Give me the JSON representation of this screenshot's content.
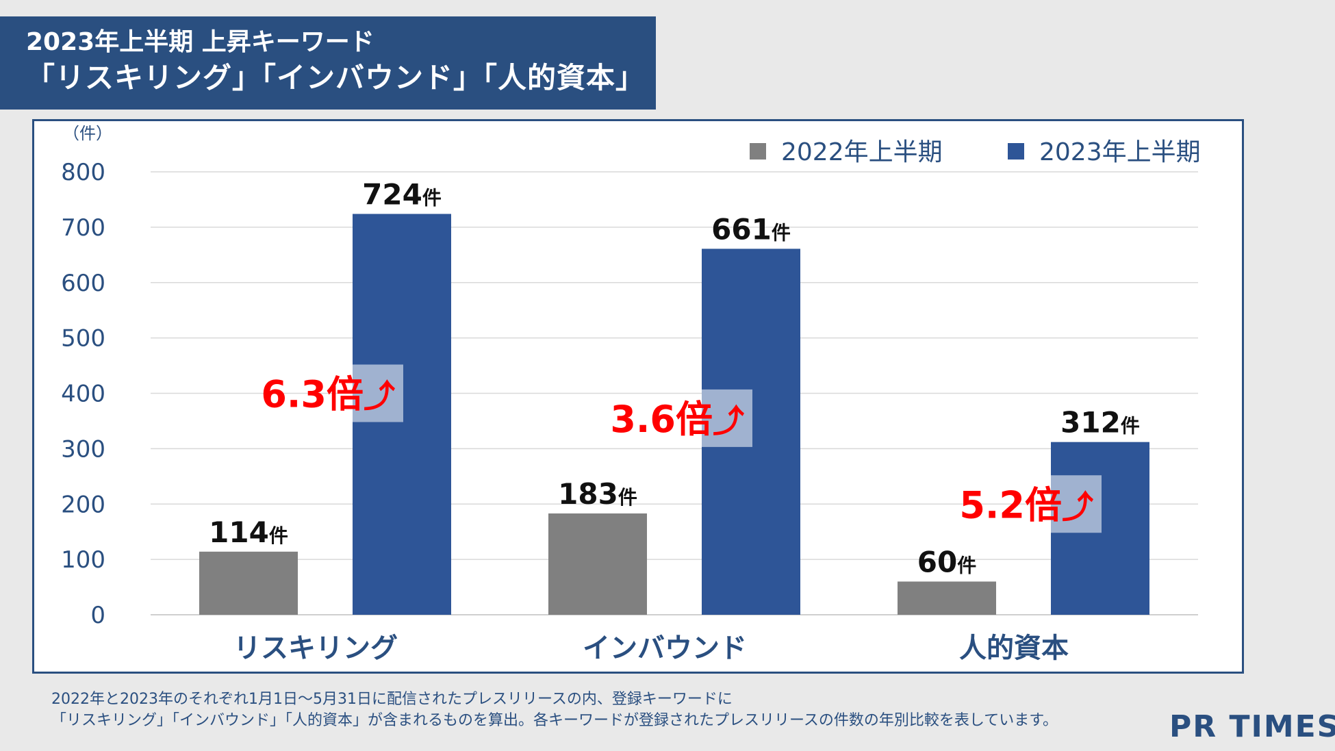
{
  "header": {
    "title_line1": "2023年上半期 上昇キーワード",
    "title_line2": "「リスキリング」「インバウンド」「人的資本」"
  },
  "chart_data": {
    "type": "bar",
    "unit_label": "（件）",
    "value_suffix": "件",
    "categories": [
      "リスキリング",
      "インバウンド",
      "人的資本"
    ],
    "series": [
      {
        "name": "2022年上半期",
        "color": "#808080",
        "values": [
          114,
          183,
          60
        ]
      },
      {
        "name": "2023年上半期",
        "color": "#2e5597",
        "values": [
          724,
          661,
          312
        ]
      }
    ],
    "ylim": [
      0,
      800
    ],
    "yticks": [
      0,
      100,
      200,
      300,
      400,
      500,
      600,
      700,
      800
    ],
    "grid": true,
    "legend_position": "top-right",
    "annotations": [
      {
        "text": "6.3倍",
        "arrow": "⤴",
        "at_value": 400
      },
      {
        "text": "3.6倍",
        "arrow": "⤴",
        "at_value": 355
      },
      {
        "text": "5.2倍",
        "arrow": "⤴",
        "at_value": 200
      }
    ],
    "annotation_color": "#ff0000"
  },
  "footnote": {
    "line1": "2022年と2023年のそれぞれ1月1日～5月31日に配信されたプレスリリースの内、登録キーワードに",
    "line2": "「リスキリング」「インバウンド」「人的資本」が含まれるものを算出。各キーワードが登録されたプレスリリースの件数の年別比較を表しています。"
  },
  "logo": {
    "text": "PR TIMES"
  }
}
